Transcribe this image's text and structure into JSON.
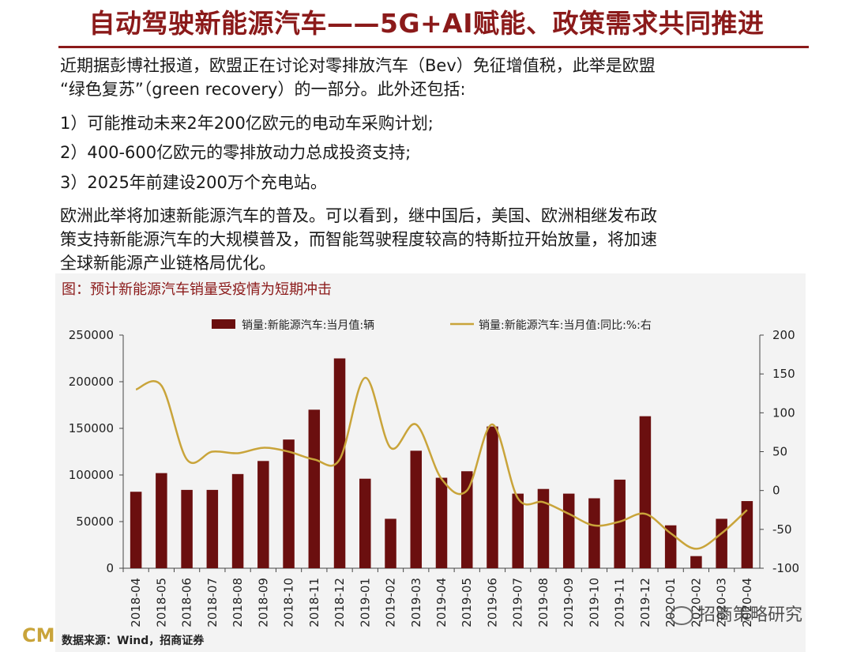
{
  "title": "自动驾驶新能源汽车——5G+AI赋能、政策需求共同推进",
  "paragraph1": {
    "line1": "近期据彭博社报道，欧盟正在讨论对零排放汽车（Bev）免征增值税，此举是欧盟",
    "line2": "“绿色复苏”（green recovery）的一部分。此外还包括:"
  },
  "list_items": [
    "1）可能推动未来2年200亿欧元的电动车采购计划;",
    "2）400-600亿欧元的零排放动力总成投资支持;",
    "3）2025年前建设200万个充电站。"
  ],
  "paragraph2": {
    "line1": "欧洲此举将加速新能源汽车的普及。可以看到，继中国后，美国、欧洲相继发布政",
    "line2": "策支持新能源汽车的大规模普及，而智能驾驶程度较高的特斯拉开始放量，将加速",
    "line3": "全球新能源产业链格局优化。"
  },
  "chart_title": "图：预计新能源汽车销量受疫情为短期冲击",
  "source": "数据来源：Wind，招商证券",
  "logo_text": "CM",
  "watermark": "招商策略研究",
  "colors": {
    "accent": "#8b1a1a",
    "bar": "#6b0f0f",
    "line": "#c9a43a"
  },
  "chart_data": {
    "type": "bar",
    "categories": [
      "2018-04",
      "2018-05",
      "2018-06",
      "2018-07",
      "2018-08",
      "2018-09",
      "2018-10",
      "2018-11",
      "2018-12",
      "2019-01",
      "2019-02",
      "2019-03",
      "2019-04",
      "2019-05",
      "2019-06",
      "2019-07",
      "2019-08",
      "2019-09",
      "2019-10",
      "2019-11",
      "2019-12",
      "2020-01",
      "2020-02",
      "2020-03",
      "2020-04"
    ],
    "series": [
      {
        "name": "销量:新能源汽车:当月值:辆",
        "type": "bar",
        "axis": "left",
        "values": [
          82000,
          102000,
          84000,
          84000,
          101000,
          115000,
          138000,
          170000,
          225000,
          96000,
          53000,
          126000,
          97000,
          104000,
          152000,
          80000,
          85000,
          80000,
          75000,
          95000,
          163000,
          46000,
          13000,
          53000,
          72000
        ]
      },
      {
        "name": "销量:新能源汽车:当月值:同比:%:右",
        "type": "line",
        "axis": "right",
        "values": [
          130,
          135,
          40,
          50,
          48,
          55,
          50,
          40,
          40,
          145,
          55,
          85,
          15,
          0,
          85,
          -10,
          -15,
          -30,
          -45,
          -40,
          -30,
          -55,
          -75,
          -55,
          -25
        ]
      }
    ],
    "ylim_left": [
      0,
      250000
    ],
    "yticks_left": [
      0,
      50000,
      100000,
      150000,
      200000,
      250000
    ],
    "ylim_right": [
      -100,
      200
    ],
    "yticks_right": [
      -100,
      -50,
      0,
      50,
      100,
      150,
      200
    ],
    "legend_position": "top"
  }
}
